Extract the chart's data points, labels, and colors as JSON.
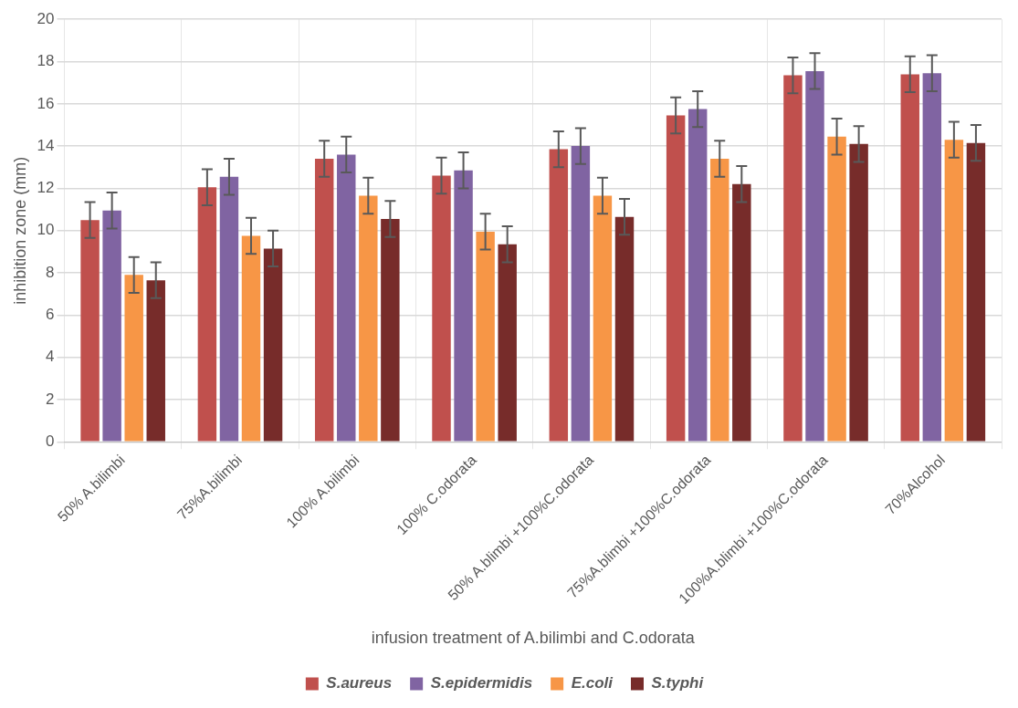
{
  "chart_data": {
    "type": "bar",
    "xlabel": "infusion treatment of A.bilimbi and C.odorata",
    "ylabel": "inhibition zone (mm)",
    "categories": [
      "50% A.bilimbi",
      "75%A.bilimbi",
      "100% A.bilimbi",
      "100% C.odorata",
      "50% A.blimbi +100%C.odorata",
      "75%A.blimbi +100%C.odorata",
      "100%A.blimbi +100%C.odorata",
      "70%Alcohol"
    ],
    "series": [
      {
        "name": "S.aureus",
        "color": "#c0504d",
        "values": [
          10.5,
          12.05,
          13.4,
          12.6,
          13.85,
          15.45,
          17.35,
          17.4
        ],
        "errors": [
          0.85,
          0.85,
          0.85,
          0.85,
          0.85,
          0.85,
          0.85,
          0.85
        ]
      },
      {
        "name": "S.epidermidis",
        "color": "#8064a2",
        "values": [
          10.95,
          12.55,
          13.6,
          12.85,
          14.0,
          15.75,
          17.55,
          17.45
        ],
        "errors": [
          0.85,
          0.85,
          0.85,
          0.85,
          0.85,
          0.85,
          0.85,
          0.85
        ]
      },
      {
        "name": "E.coli",
        "color": "#f79646",
        "values": [
          7.9,
          9.75,
          11.65,
          9.95,
          11.65,
          13.4,
          14.45,
          14.3
        ],
        "errors": [
          0.85,
          0.85,
          0.85,
          0.85,
          0.85,
          0.85,
          0.85,
          0.85
        ]
      },
      {
        "name": "S.typhi",
        "color": "#772c2a",
        "values": [
          7.65,
          9.15,
          10.55,
          9.35,
          10.65,
          12.2,
          14.1,
          14.15
        ],
        "errors": [
          0.85,
          0.85,
          0.85,
          0.85,
          0.85,
          0.85,
          0.85,
          0.85
        ]
      }
    ],
    "ylim": [
      0,
      20
    ],
    "yticks": [
      0,
      2,
      4,
      6,
      8,
      10,
      12,
      14,
      16,
      18,
      20
    ],
    "grid": true,
    "legend": "bottom"
  }
}
